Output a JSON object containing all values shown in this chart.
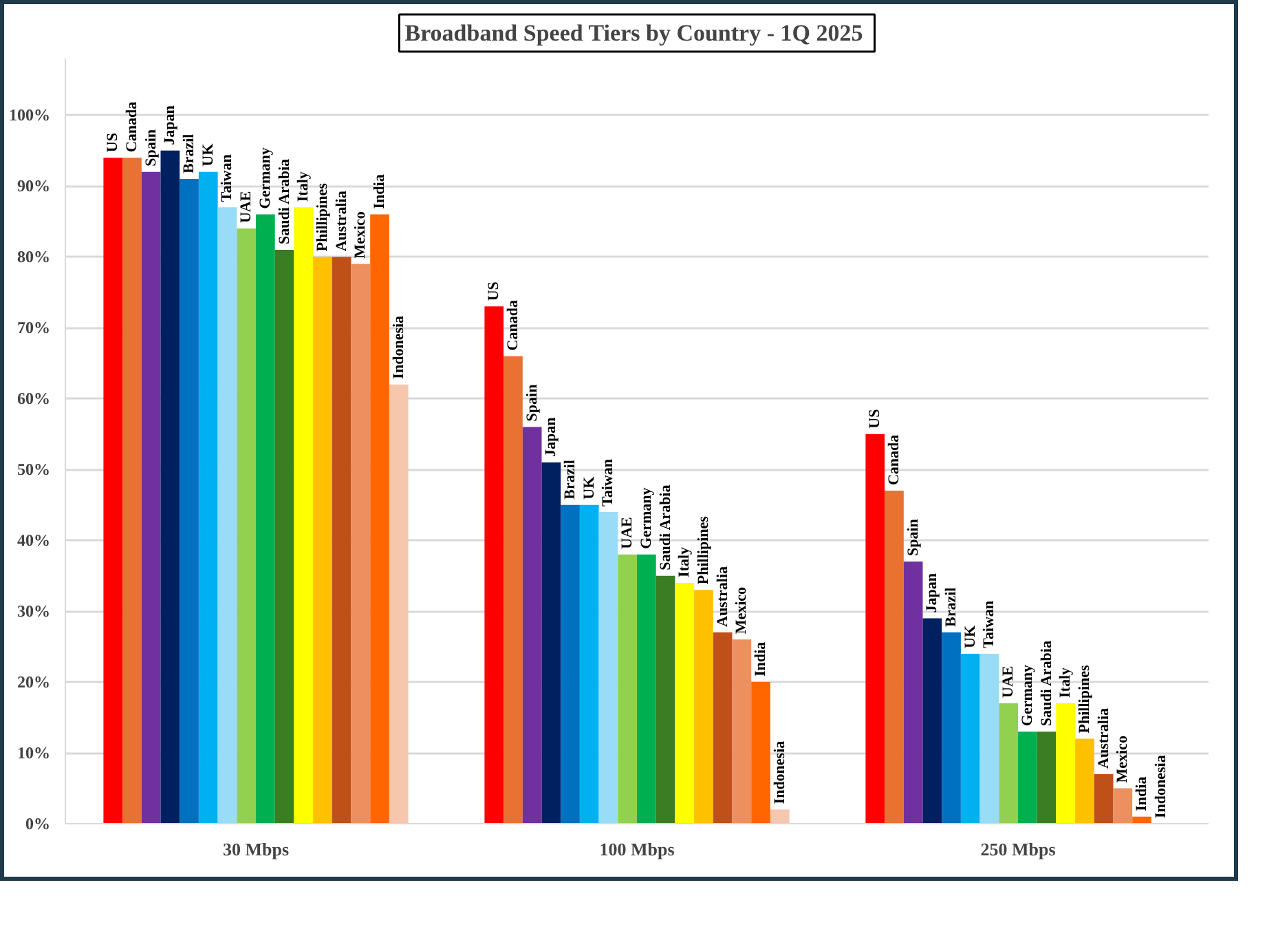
{
  "chart_data": {
    "type": "bar",
    "title": "Broadband  Speed Tiers by Country - 1Q 2025",
    "categories": [
      "30 Mbps",
      "100 Mbps",
      "250 Mbps"
    ],
    "series": [
      {
        "name": "US",
        "color": "#ff0000",
        "values": [
          94,
          73,
          55
        ]
      },
      {
        "name": "Canada",
        "color": "#e97132",
        "values": [
          94,
          66,
          47
        ]
      },
      {
        "name": "Spain",
        "color": "#7030a0",
        "values": [
          92,
          56,
          37
        ]
      },
      {
        "name": "Japan",
        "color": "#002060",
        "values": [
          95,
          51,
          29
        ]
      },
      {
        "name": "Brazil",
        "color": "#0070c0",
        "values": [
          91,
          45,
          27
        ]
      },
      {
        "name": "UK",
        "color": "#00b0f0",
        "values": [
          92,
          45,
          24
        ]
      },
      {
        "name": "Taiwan",
        "color": "#99dcf7",
        "values": [
          87,
          44,
          24
        ]
      },
      {
        "name": "UAE",
        "color": "#92d050",
        "values": [
          84,
          38,
          17
        ]
      },
      {
        "name": "Germany",
        "color": "#00b050",
        "values": [
          86,
          38,
          13
        ]
      },
      {
        "name": "Saudi Arabia",
        "color": "#3a7d22",
        "values": [
          81,
          35,
          13
        ]
      },
      {
        "name": "Italy",
        "color": "#ffff00",
        "values": [
          87,
          34,
          17
        ]
      },
      {
        "name": "Phillipines",
        "color": "#ffc000",
        "values": [
          80,
          33,
          12
        ]
      },
      {
        "name": "Australia",
        "color": "#c0501a",
        "values": [
          80,
          27,
          7
        ]
      },
      {
        "name": "Mexico",
        "color": "#ed8f5e",
        "values": [
          79,
          26,
          5
        ]
      },
      {
        "name": "India",
        "color": "#ff6600",
        "values": [
          86,
          20,
          1
        ]
      },
      {
        "name": "Indonesia",
        "color": "#f6c6ad",
        "values": [
          62,
          2,
          0
        ]
      }
    ],
    "ylim": [
      0,
      108
    ],
    "yticks": [
      {
        "value": 0,
        "label": "0%"
      },
      {
        "value": 10,
        "label": "10%"
      },
      {
        "value": 20,
        "label": "20%"
      },
      {
        "value": 30,
        "label": "30%"
      },
      {
        "value": 40,
        "label": "40%"
      },
      {
        "value": 50,
        "label": "50%"
      },
      {
        "value": 60,
        "label": "60%"
      },
      {
        "value": 70,
        "label": "70%"
      },
      {
        "value": 80,
        "label": "80%"
      },
      {
        "value": 90,
        "label": "90%"
      },
      {
        "value": 100,
        "label": "100%"
      }
    ],
    "grid": "y"
  }
}
